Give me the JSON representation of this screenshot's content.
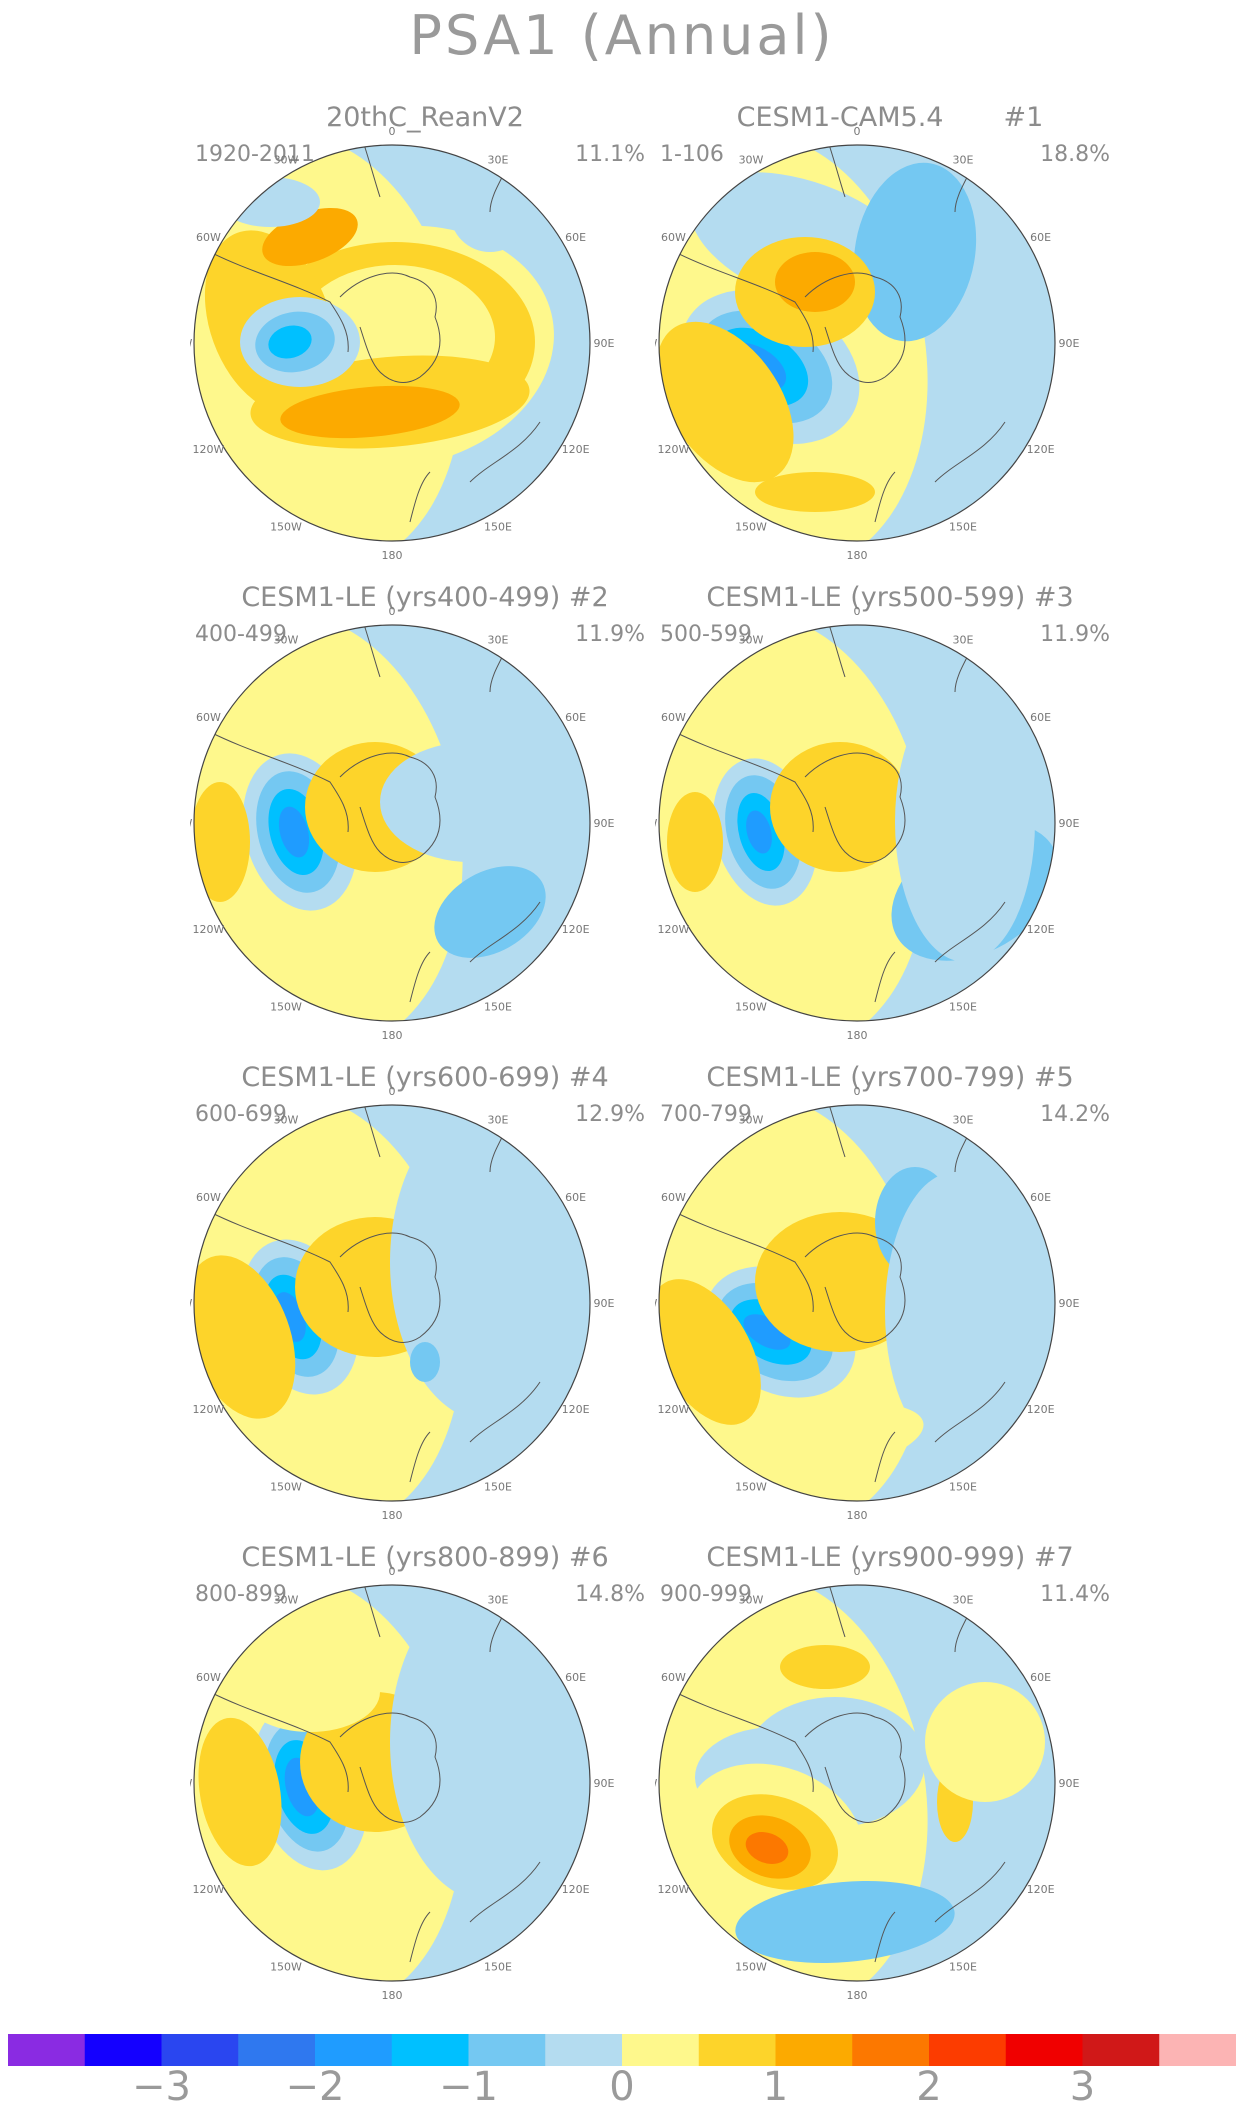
{
  "title": "PSA1 (Annual)",
  "lon_labels": [
    "0",
    "30E",
    "60E",
    "90E",
    "120E",
    "150E",
    "180",
    "150W",
    "120W",
    "90W",
    "60W",
    "30W"
  ],
  "panels": [
    {
      "title": "20thC_ReanV2",
      "period": "1920-2011",
      "pct": "11.1%"
    },
    {
      "title": "CESM1-CAM5.4       #1",
      "period": "1-106",
      "pct": "18.8%"
    },
    {
      "title": "CESM1-LE (yrs400-499) #2",
      "period": "400-499",
      "pct": "11.9%"
    },
    {
      "title": "CESM1-LE (yrs500-599) #3",
      "period": "500-599",
      "pct": "11.9%"
    },
    {
      "title": "CESM1-LE (yrs600-699) #4",
      "period": "600-699",
      "pct": "12.9%"
    },
    {
      "title": "CESM1-LE (yrs700-799) #5",
      "period": "700-799",
      "pct": "14.2%"
    },
    {
      "title": "CESM1-LE (yrs800-899) #6",
      "period": "800-899",
      "pct": "14.8%"
    },
    {
      "title": "CESM1-LE (yrs900-999) #7",
      "period": "900-999",
      "pct": "11.4%"
    }
  ],
  "colorbar": {
    "colors": [
      "#8a2be2",
      "#1400ff",
      "#2a46f0",
      "#2f78ef",
      "#1f9cff",
      "#00c0ff",
      "#74c8f2",
      "#b4dcf0",
      "#fef88c",
      "#fdd42a",
      "#fcaa00",
      "#fc7800",
      "#fc3c00",
      "#f00000",
      "#d01818",
      "#fcb4b4"
    ],
    "labels": [
      "−3",
      "−2",
      "−1",
      "0",
      "1",
      "2",
      "3"
    ]
  },
  "colors": {
    "positive_light": "#fef88c",
    "positive_mid": "#fdd42a",
    "positive_strong": "#fcaa00",
    "positive_max": "#fc7800",
    "negative_light": "#b4dcf0",
    "negative_mid": "#74c8f2",
    "negative_strong": "#00c0ff",
    "negative_max": "#1f9cff",
    "negative_ext": "#2f78ef"
  }
}
